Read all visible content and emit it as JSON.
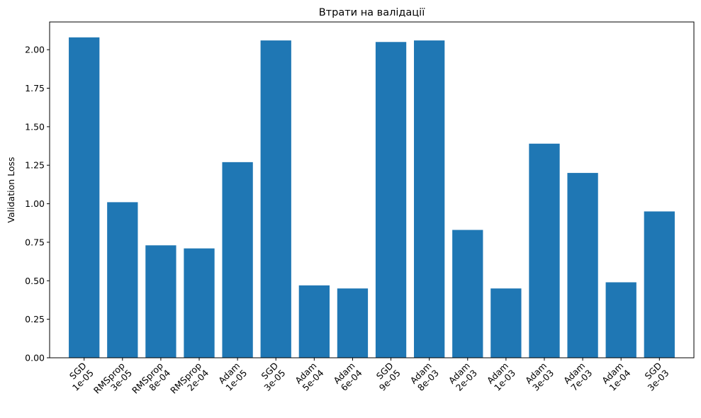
{
  "chart_data": {
    "type": "bar",
    "title": "Втрати на валідації",
    "xlabel": "",
    "ylabel": "Validation Loss",
    "ylim": [
      0,
      2.18
    ],
    "yticks": [
      "0.00",
      "0.25",
      "0.50",
      "0.75",
      "1.00",
      "1.25",
      "1.50",
      "1.75",
      "2.00"
    ],
    "grid": false,
    "bar_color": "#1f77b4",
    "categories": [
      [
        "SGD",
        "1e-05"
      ],
      [
        "RMSprop",
        "3e-05"
      ],
      [
        "RMSprop",
        "8e-04"
      ],
      [
        "RMSprop",
        "2e-04"
      ],
      [
        "Adam",
        "1e-05"
      ],
      [
        "SGD",
        "3e-05"
      ],
      [
        "Adam",
        "5e-04"
      ],
      [
        "Adam",
        "6e-04"
      ],
      [
        "SGD",
        "9e-05"
      ],
      [
        "Adam",
        "8e-03"
      ],
      [
        "Adam",
        "2e-03"
      ],
      [
        "Adam",
        "1e-03"
      ],
      [
        "Adam",
        "3e-03"
      ],
      [
        "Adam",
        "7e-03"
      ],
      [
        "Adam",
        "1e-04"
      ],
      [
        "SGD",
        "3e-03"
      ]
    ],
    "values": [
      2.08,
      1.01,
      0.73,
      0.71,
      1.27,
      2.06,
      0.47,
      0.45,
      2.05,
      2.06,
      0.83,
      0.45,
      1.39,
      1.2,
      0.49,
      0.95
    ]
  }
}
